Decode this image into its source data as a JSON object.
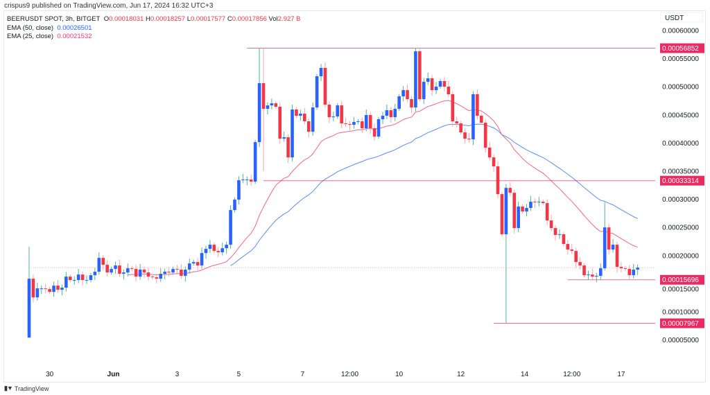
{
  "publisher_line": "crispus9 published on TradingView.com, Jun 17, 2024 16:32 UTC+3",
  "legend": {
    "symbol": "BEERUSDT SPOT, 3h, BITGET",
    "o_label": "O",
    "o": "0.00018031",
    "h_label": "H",
    "h": "0.00018257",
    "l_label": "L",
    "l": "0.00017577",
    "c_label": "C",
    "c": "0.00017856",
    "vol_label": "Vol",
    "vol": "2.927 B",
    "ema50_label": "EMA (50, close)",
    "ema50": "0.00026501",
    "ema25_label": "EMA (25, close)",
    "ema25": "0.00021532"
  },
  "footer": {
    "brand": "TradingView",
    "logo_text": "TV"
  },
  "colors": {
    "up": "#2962ff",
    "down": "#f23645",
    "up_wick": "#4fb39c",
    "down_wick": "#f7a1ad",
    "ema50": "#5b8cf5",
    "ema25": "#f0648a",
    "level": "#ec2a62"
  },
  "chart_data": {
    "type": "candlestick",
    "currency_label": "USDT",
    "ylim": [
      2e-05,
      0.000615
    ],
    "yticks": [
      "0.00060000",
      "0.00055000",
      "0.00050000",
      "0.00045000",
      "0.00040000",
      "0.00035000",
      "0.00030000",
      "0.00025000",
      "0.00020000",
      "0.00015000",
      "0.00010000",
      "0.00005000"
    ],
    "xticks": [
      {
        "label": "30",
        "index": 5,
        "bold": false
      },
      {
        "label": "Jun",
        "index": 20.5,
        "bold": true
      },
      {
        "label": "3",
        "index": 36,
        "bold": false
      },
      {
        "label": "5",
        "index": 51,
        "bold": false
      },
      {
        "label": "7",
        "index": 66.5,
        "bold": false
      },
      {
        "label": "12:00",
        "index": 78,
        "bold": false
      },
      {
        "label": "10",
        "index": 90,
        "bold": false
      },
      {
        "label": "12",
        "index": 105,
        "bold": false
      },
      {
        "label": "14",
        "index": 120.5,
        "bold": false
      },
      {
        "label": "12:00",
        "index": 132,
        "bold": false
      },
      {
        "label": "17",
        "index": 144,
        "bold": false
      }
    ],
    "first_open": 5.42e-05,
    "close": [
      0.0001589,
      0.0001257,
      0.0001417,
      0.0001417,
      0.0001405,
      0.0001355,
      0.0001466,
      0.0001392,
      0.0001429,
      0.0001626,
      0.0001565,
      0.0001565,
      0.0001663,
      0.0001565,
      0.0001565,
      0.0001651,
      0.0001713,
      0.0001959,
      0.0001836,
      0.00017,
      0.0001762,
      0.0001824,
      0.0001676,
      0.00017,
      0.0001774,
      0.0001762,
      0.0001626,
      0.000175,
      0.00017,
      0.0001626,
      0.0001614,
      0.0001589,
      0.0001676,
      0.0001713,
      0.00017,
      0.0001762,
      0.000175,
      0.0001639,
      0.000175,
      0.000186,
      0.0001885,
      0.0001824,
      0.0002045,
      0.0002119,
      0.0002193,
      0.0002082,
      0.0002058,
      0.0002131,
      0.0002193,
      0.0002809,
      0.0002994,
      0.0003339,
      0.0003351,
      0.0003351,
      0.0003314,
      0.0004016,
      0.0005064,
      0.0004608,
      0.0004669,
      0.0004706,
      0.0004645,
      0.0004078,
      0.0004103,
      0.0003745,
      0.0004596,
      0.0004485,
      0.0004522,
      0.0004386,
      0.0004201,
      0.0004632,
      0.0005187,
      0.0005335,
      0.0004682,
      0.000446,
      0.0004472,
      0.0004669,
      0.0004349,
      0.0004337,
      0.0004324,
      0.0004374,
      0.0004386,
      0.0004263,
      0.0004497,
      0.0004263,
      0.0004115,
      0.0004423,
      0.0004485,
      0.0004583,
      0.000446,
      0.0004608,
      0.000483,
      0.000494,
      0.000478,
      0.0004632,
      0.000563,
      0.000478,
      0.0005088,
      0.000515,
      0.000494,
      0.0005002,
      0.0005101,
      0.0005002,
      0.0004867,
      0.0004386,
      0.0004349,
      0.0004189,
      0.0004078,
      0.0004066,
      0.0004867,
      0.0004485,
      0.0004361,
      0.0003918,
      0.0003745,
      0.0003585,
      0.0003092,
      0.0002378,
      0.0003203,
      0.0003116,
      0.0002489,
      0.0002871,
      0.0002784,
      0.0002846,
      0.0002957,
      0.0002945,
      0.0002957,
      0.0002932,
      0.0002624,
      0.0002489,
      0.0002366,
      0.0002378,
      0.0002206,
      0.0002107,
      0.0002082,
      0.0001885,
      0.0001824,
      0.0001651,
      0.0001663,
      0.0001626,
      0.0001639,
      0.0001774,
      0.0002501,
      0.0002107,
      0.0002193,
      0.0001799,
      0.0001774,
      0.0001762,
      0.0001651,
      0.000175,
      0.0001786
    ],
    "notable_wicks": [
      {
        "index": 0,
        "high": 0.0002156,
        "low": 5.42e-05
      },
      {
        "index": 56,
        "high": 0.000569
      },
      {
        "index": 57,
        "high": 0.00056852,
        "low": 0.00035
      },
      {
        "index": 116,
        "low": 7.967e-05
      },
      {
        "index": 94,
        "high": 0.00056852
      },
      {
        "index": 140,
        "high": 0.000295
      }
    ],
    "last_price": 0.00017856,
    "ema_periods": [
      50,
      25
    ],
    "levels": [
      {
        "price": 0.00056852,
        "label": "0.00056852",
        "from_index": 53
      },
      {
        "price": 0.00033314,
        "label": "0.00033314",
        "from_index": 57
      },
      {
        "price": 0.00015696,
        "label": "0.00015696",
        "from_index": 131
      },
      {
        "price": 7.967e-05,
        "label": "0.00007967",
        "from_index": 113
      }
    ]
  }
}
